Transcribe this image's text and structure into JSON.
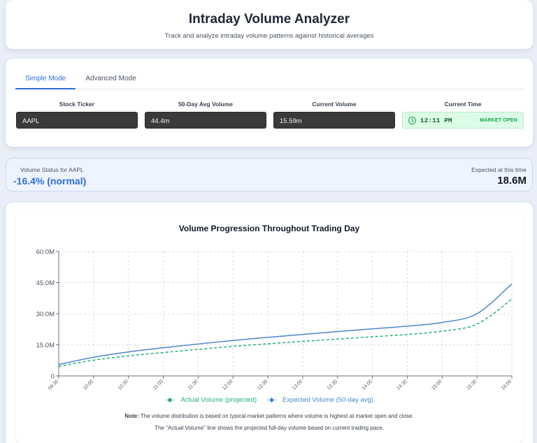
{
  "header": {
    "title": "Intraday Volume Analyzer",
    "subtitle": "Track and analyze intraday volume patterns against historical averages"
  },
  "tabs": [
    {
      "label": "Simple Mode",
      "active": true
    },
    {
      "label": "Advanced Mode",
      "active": false
    }
  ],
  "fields": {
    "ticker": {
      "label": "Stock Ticker",
      "value": "AAPL"
    },
    "avg_volume": {
      "label": "50-Day Avg Volume",
      "value": "44.4m"
    },
    "current_volume": {
      "label": "Current Volume",
      "value": "15.59m"
    },
    "current_time": {
      "label": "Current Time",
      "value": "12:11 PM",
      "status": "MARKET OPEN"
    }
  },
  "status": {
    "label": "Volume Status for AAPL",
    "value": "-16.4% (normal)",
    "expected_label": "Expected at this time",
    "expected_value": "18.6M"
  },
  "colors": {
    "accent": "#2f6fd6",
    "expected_line": "#4a86cf",
    "actual_line": "#21b07a",
    "market_open": "#16a34a"
  },
  "chart_data": {
    "type": "line",
    "title": "Volume Progression Throughout Trading Day",
    "x": [
      "09:30",
      "10:00",
      "10:30",
      "11:00",
      "11:30",
      "12:00",
      "12:30",
      "13:00",
      "13:30",
      "14:00",
      "14:30",
      "15:00",
      "15:30",
      "16:00"
    ],
    "y_ticks": [
      "0",
      "15.0M",
      "30.0M",
      "45.0M",
      "60.0M"
    ],
    "ylim": [
      0,
      60
    ],
    "grid": true,
    "legend_position": "bottom",
    "series": [
      {
        "name": "Actual Volume (projected)",
        "style": "dashed",
        "values": [
          4.6,
          7.6,
          9.7,
          11.3,
          12.8,
          14.3,
          15.5,
          16.7,
          17.8,
          18.9,
          20.0,
          21.6,
          25.0,
          37.0
        ]
      },
      {
        "name": "Expected Volume (50-day avg)",
        "style": "solid",
        "values": [
          5.5,
          9.0,
          11.6,
          13.6,
          15.4,
          17.1,
          18.6,
          20.0,
          21.4,
          22.7,
          24.0,
          25.8,
          30.0,
          44.4
        ]
      }
    ]
  },
  "notes": {
    "note_label": "Note:",
    "note_text": " The volume distribution is based on typical market patterns where volume is highest at market open and close.",
    "line2": "The \"Actual Volume\" line shows the projected full-day volume based on current trading pace."
  }
}
